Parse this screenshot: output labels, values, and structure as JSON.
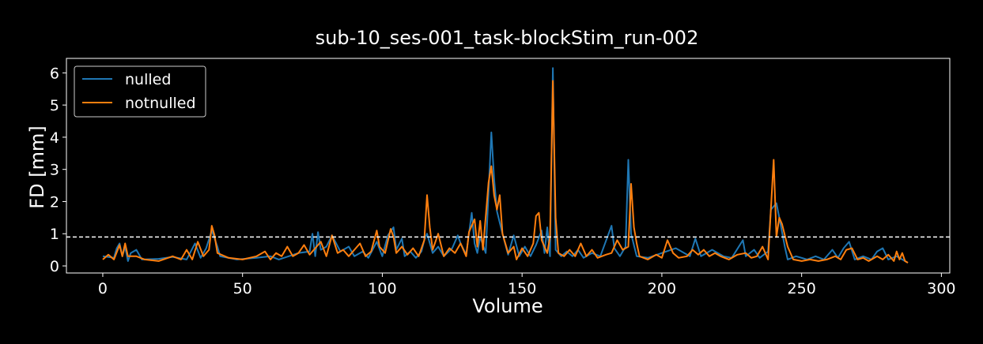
{
  "chart_data": {
    "type": "line",
    "title": "sub-10_ses-001_task-blockStim_run-002",
    "xlabel": "Volume",
    "ylabel": "FD [mm]",
    "xlim": [
      -13,
      303
    ],
    "ylim": [
      -0.22,
      6.45
    ],
    "xticks": [
      0,
      50,
      100,
      150,
      200,
      250,
      300
    ],
    "yticks": [
      0,
      1,
      2,
      3,
      4,
      5,
      6
    ],
    "threshold": 0.9,
    "grid": false,
    "legend_position": "top-left",
    "series": [
      {
        "name": "nulled",
        "color": "#1f77b4",
        "points": [
          [
            0,
            0.3
          ],
          [
            4,
            0.25
          ],
          [
            5,
            0.55
          ],
          [
            6,
            0.7
          ],
          [
            7,
            0.3
          ],
          [
            8,
            0.6
          ],
          [
            9,
            0.15
          ],
          [
            10,
            0.4
          ],
          [
            12,
            0.5
          ],
          [
            14,
            0.2
          ],
          [
            20,
            0.22
          ],
          [
            25,
            0.28
          ],
          [
            30,
            0.2
          ],
          [
            33,
            0.7
          ],
          [
            35,
            0.25
          ],
          [
            37,
            0.55
          ],
          [
            39,
            1.1
          ],
          [
            41,
            0.6
          ],
          [
            42,
            0.3
          ],
          [
            48,
            0.2
          ],
          [
            55,
            0.25
          ],
          [
            60,
            0.3
          ],
          [
            63,
            0.2
          ],
          [
            70,
            0.4
          ],
          [
            74,
            0.45
          ],
          [
            75,
            1.0
          ],
          [
            76,
            0.3
          ],
          [
            77,
            1.05
          ],
          [
            78,
            0.5
          ],
          [
            80,
            0.6
          ],
          [
            82,
            0.95
          ],
          [
            85,
            0.45
          ],
          [
            88,
            0.6
          ],
          [
            90,
            0.3
          ],
          [
            93,
            0.45
          ],
          [
            95,
            0.25
          ],
          [
            98,
            0.75
          ],
          [
            100,
            0.3
          ],
          [
            102,
            0.95
          ],
          [
            104,
            1.2
          ],
          [
            105,
            0.5
          ],
          [
            107,
            0.85
          ],
          [
            108,
            0.3
          ],
          [
            110,
            0.45
          ],
          [
            112,
            0.25
          ],
          [
            114,
            0.45
          ],
          [
            115,
            0.8
          ],
          [
            116,
            1.0
          ],
          [
            118,
            0.4
          ],
          [
            120,
            0.6
          ],
          [
            122,
            0.3
          ],
          [
            125,
            0.55
          ],
          [
            127,
            0.95
          ],
          [
            128,
            0.7
          ],
          [
            130,
            0.35
          ],
          [
            132,
            1.65
          ],
          [
            133,
            0.7
          ],
          [
            134,
            0.4
          ],
          [
            135,
            0.9
          ],
          [
            137,
            0.4
          ],
          [
            139,
            4.15
          ],
          [
            140,
            2.7
          ],
          [
            141,
            1.7
          ],
          [
            143,
            1.0
          ],
          [
            145,
            0.35
          ],
          [
            147,
            0.95
          ],
          [
            149,
            0.3
          ],
          [
            151,
            0.6
          ],
          [
            153,
            0.3
          ],
          [
            155,
            0.65
          ],
          [
            157,
            1.1
          ],
          [
            158,
            0.4
          ],
          [
            159,
            1.2
          ],
          [
            160,
            0.3
          ],
          [
            161,
            6.15
          ],
          [
            162,
            0.5
          ],
          [
            164,
            0.3
          ],
          [
            166,
            0.45
          ],
          [
            168,
            0.3
          ],
          [
            170,
            0.5
          ],
          [
            172,
            0.25
          ],
          [
            175,
            0.4
          ],
          [
            178,
            0.3
          ],
          [
            182,
            1.25
          ],
          [
            183,
            0.55
          ],
          [
            185,
            0.3
          ],
          [
            187,
            0.6
          ],
          [
            188,
            3.3
          ],
          [
            189,
            1.0
          ],
          [
            191,
            0.3
          ],
          [
            195,
            0.25
          ],
          [
            200,
            0.4
          ],
          [
            205,
            0.55
          ],
          [
            210,
            0.3
          ],
          [
            212,
            0.85
          ],
          [
            214,
            0.3
          ],
          [
            218,
            0.5
          ],
          [
            222,
            0.3
          ],
          [
            225,
            0.25
          ],
          [
            229,
            0.8
          ],
          [
            230,
            0.3
          ],
          [
            233,
            0.5
          ],
          [
            235,
            0.25
          ],
          [
            238,
            0.45
          ],
          [
            239,
            1.75
          ],
          [
            240,
            1.85
          ],
          [
            241,
            1.95
          ],
          [
            242,
            1.5
          ],
          [
            244,
            0.6
          ],
          [
            245,
            0.2
          ],
          [
            248,
            0.3
          ],
          [
            252,
            0.2
          ],
          [
            255,
            0.3
          ],
          [
            258,
            0.2
          ],
          [
            261,
            0.5
          ],
          [
            263,
            0.25
          ],
          [
            265,
            0.55
          ],
          [
            267,
            0.75
          ],
          [
            269,
            0.2
          ],
          [
            272,
            0.3
          ],
          [
            275,
            0.2
          ],
          [
            277,
            0.45
          ],
          [
            279,
            0.55
          ],
          [
            281,
            0.2
          ],
          [
            284,
            0.3
          ],
          [
            286,
            0.2
          ],
          [
            288,
            0.1
          ]
        ]
      },
      {
        "name": "notnulled",
        "color": "#ff7f0e",
        "points": [
          [
            0,
            0.2
          ],
          [
            2,
            0.35
          ],
          [
            4,
            0.2
          ],
          [
            6,
            0.65
          ],
          [
            7,
            0.3
          ],
          [
            8,
            0.7
          ],
          [
            9,
            0.3
          ],
          [
            12,
            0.3
          ],
          [
            15,
            0.2
          ],
          [
            20,
            0.15
          ],
          [
            25,
            0.3
          ],
          [
            28,
            0.2
          ],
          [
            30,
            0.5
          ],
          [
            32,
            0.2
          ],
          [
            34,
            0.75
          ],
          [
            36,
            0.3
          ],
          [
            38,
            0.5
          ],
          [
            39,
            1.25
          ],
          [
            40,
            0.95
          ],
          [
            41,
            0.4
          ],
          [
            45,
            0.25
          ],
          [
            50,
            0.2
          ],
          [
            55,
            0.3
          ],
          [
            58,
            0.45
          ],
          [
            60,
            0.2
          ],
          [
            62,
            0.4
          ],
          [
            64,
            0.3
          ],
          [
            66,
            0.6
          ],
          [
            68,
            0.3
          ],
          [
            70,
            0.4
          ],
          [
            72,
            0.65
          ],
          [
            74,
            0.35
          ],
          [
            76,
            0.55
          ],
          [
            78,
            0.75
          ],
          [
            80,
            0.3
          ],
          [
            82,
            0.95
          ],
          [
            84,
            0.4
          ],
          [
            86,
            0.5
          ],
          [
            88,
            0.3
          ],
          [
            90,
            0.5
          ],
          [
            92,
            0.7
          ],
          [
            94,
            0.3
          ],
          [
            96,
            0.45
          ],
          [
            98,
            1.1
          ],
          [
            99,
            0.6
          ],
          [
            101,
            0.4
          ],
          [
            103,
            1.15
          ],
          [
            104,
            0.9
          ],
          [
            105,
            0.4
          ],
          [
            107,
            0.6
          ],
          [
            109,
            0.35
          ],
          [
            111,
            0.55
          ],
          [
            113,
            0.3
          ],
          [
            115,
            0.8
          ],
          [
            116,
            2.2
          ],
          [
            117,
            1.2
          ],
          [
            118,
            0.5
          ],
          [
            120,
            1.0
          ],
          [
            122,
            0.3
          ],
          [
            124,
            0.55
          ],
          [
            126,
            0.4
          ],
          [
            128,
            0.7
          ],
          [
            130,
            0.3
          ],
          [
            131,
            1.05
          ],
          [
            133,
            1.45
          ],
          [
            134,
            0.6
          ],
          [
            135,
            1.4
          ],
          [
            136,
            0.5
          ],
          [
            138,
            2.6
          ],
          [
            139,
            3.1
          ],
          [
            140,
            2.2
          ],
          [
            141,
            1.75
          ],
          [
            142,
            2.2
          ],
          [
            143,
            1.0
          ],
          [
            145,
            0.4
          ],
          [
            147,
            0.6
          ],
          [
            148,
            0.2
          ],
          [
            150,
            0.55
          ],
          [
            152,
            0.3
          ],
          [
            154,
            0.7
          ],
          [
            155,
            1.55
          ],
          [
            156,
            1.65
          ],
          [
            157,
            0.8
          ],
          [
            159,
            0.4
          ],
          [
            160,
            0.9
          ],
          [
            161,
            5.75
          ],
          [
            162,
            1.5
          ],
          [
            163,
            0.4
          ],
          [
            165,
            0.3
          ],
          [
            167,
            0.5
          ],
          [
            169,
            0.3
          ],
          [
            171,
            0.7
          ],
          [
            173,
            0.3
          ],
          [
            175,
            0.5
          ],
          [
            177,
            0.25
          ],
          [
            180,
            0.35
          ],
          [
            182,
            0.4
          ],
          [
            184,
            0.8
          ],
          [
            186,
            0.5
          ],
          [
            188,
            0.6
          ],
          [
            189,
            2.55
          ],
          [
            190,
            1.2
          ],
          [
            191,
            0.7
          ],
          [
            192,
            0.3
          ],
          [
            195,
            0.2
          ],
          [
            198,
            0.35
          ],
          [
            200,
            0.25
          ],
          [
            202,
            0.8
          ],
          [
            204,
            0.4
          ],
          [
            206,
            0.25
          ],
          [
            209,
            0.3
          ],
          [
            211,
            0.5
          ],
          [
            213,
            0.35
          ],
          [
            215,
            0.5
          ],
          [
            217,
            0.3
          ],
          [
            219,
            0.4
          ],
          [
            221,
            0.3
          ],
          [
            224,
            0.2
          ],
          [
            227,
            0.35
          ],
          [
            230,
            0.4
          ],
          [
            232,
            0.25
          ],
          [
            234,
            0.3
          ],
          [
            236,
            0.6
          ],
          [
            238,
            0.2
          ],
          [
            240,
            3.3
          ],
          [
            241,
            0.9
          ],
          [
            242,
            1.5
          ],
          [
            243,
            1.3
          ],
          [
            245,
            0.6
          ],
          [
            247,
            0.2
          ],
          [
            250,
            0.15
          ],
          [
            253,
            0.2
          ],
          [
            256,
            0.15
          ],
          [
            259,
            0.2
          ],
          [
            262,
            0.3
          ],
          [
            264,
            0.2
          ],
          [
            266,
            0.5
          ],
          [
            268,
            0.55
          ],
          [
            270,
            0.2
          ],
          [
            272,
            0.25
          ],
          [
            274,
            0.15
          ],
          [
            277,
            0.3
          ],
          [
            279,
            0.2
          ],
          [
            281,
            0.35
          ],
          [
            283,
            0.15
          ],
          [
            284,
            0.45
          ],
          [
            285,
            0.2
          ],
          [
            286,
            0.4
          ],
          [
            287,
            0.15
          ],
          [
            288,
            0.1
          ]
        ]
      }
    ]
  }
}
